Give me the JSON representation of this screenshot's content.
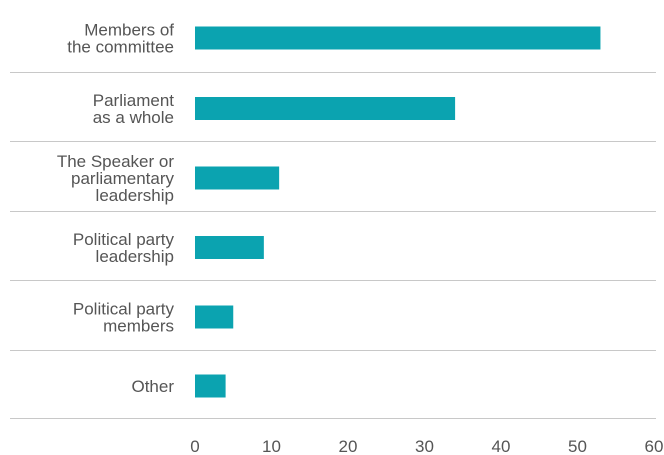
{
  "chart_data": {
    "type": "bar",
    "orientation": "horizontal",
    "categories": [
      [
        "Members of",
        "the committee"
      ],
      [
        "Parliament",
        "as a whole"
      ],
      [
        "The Speaker or",
        "parliamentary",
        "leadership"
      ],
      [
        "Political party",
        "leadership"
      ],
      [
        "Political party",
        "members"
      ],
      [
        "Other"
      ]
    ],
    "values": [
      53,
      34,
      11,
      9,
      5,
      4
    ],
    "xlim": [
      0,
      60
    ],
    "xticks": [
      "0",
      "10",
      "20",
      "30",
      "40",
      "50",
      "60"
    ],
    "grid": false,
    "row_separators": true,
    "bar_color": "#0ba3b0",
    "separator_color": "#c8c8c8",
    "title": "",
    "xlabel": "",
    "ylabel": ""
  }
}
